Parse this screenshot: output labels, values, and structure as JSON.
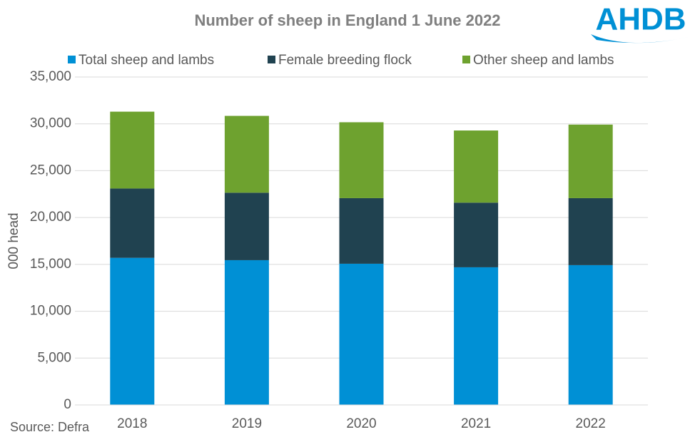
{
  "chart_data": {
    "type": "stacked_bar",
    "title": "Number of sheep in England 1 June 2022",
    "logo": "AHDB",
    "source": "Source: Defra",
    "y_label": "000 head",
    "categories": [
      "2018",
      "2019",
      "2020",
      "2021",
      "2022"
    ],
    "series": [
      {
        "name": "Total sheep and lambs",
        "color": "#0090d5",
        "values": [
          15700,
          15450,
          15070,
          14690,
          14920
        ]
      },
      {
        "name": "Female breeding flock",
        "color": "#204250",
        "values": [
          7400,
          7200,
          7000,
          6900,
          7150
        ]
      },
      {
        "name": "Other sheep and lambs",
        "color": "#6ea22f",
        "values": [
          8200,
          8200,
          8100,
          7700,
          7850
        ]
      }
    ],
    "ylim": [
      0,
      35000
    ],
    "yticks": [
      0,
      {
        "value": 5000,
        "label": "5,000"
      },
      {
        "value": 10000,
        "label": "10,000"
      },
      {
        "value": 15000,
        "label": "15,000"
      },
      {
        "value": 20000,
        "label": "20,000"
      },
      {
        "value": 25000,
        "label": "25,000"
      },
      {
        "value": 30000,
        "label": "30,000"
      },
      {
        "value": 35000,
        "label": "35,000"
      }
    ],
    "grid": true,
    "legend": "top"
  }
}
